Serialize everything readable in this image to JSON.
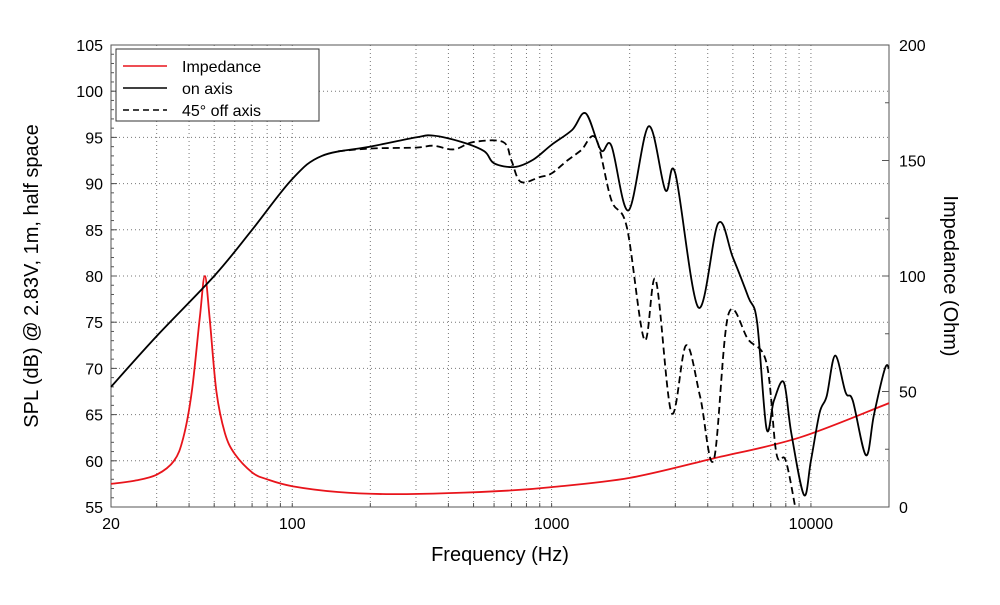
{
  "chart_data": {
    "type": "line",
    "title": "",
    "xlabel": "Frequency (Hz)",
    "ylabel": "SPL (dB) @ 2.83V, 1m, half space",
    "y2label": "Impedance (Ohm)",
    "xscale": "log",
    "xlim": [
      20,
      20000
    ],
    "ylim": [
      55,
      105
    ],
    "y2lim": [
      0,
      200
    ],
    "grid": true,
    "legend_position": "top-left",
    "x_tick_labels": [
      "20",
      "100",
      "1000",
      "10000"
    ],
    "x_ticks": [
      20,
      100,
      1000,
      10000
    ],
    "y_ticks": [
      55,
      60,
      65,
      70,
      75,
      80,
      85,
      90,
      95,
      100,
      105
    ],
    "y2_ticks": [
      0,
      50,
      100,
      150,
      200
    ],
    "series": [
      {
        "name": "Impedance",
        "axis": "right",
        "color": "#e8141b",
        "style": "solid",
        "points": [
          [
            20,
            10
          ],
          [
            25,
            11.5
          ],
          [
            30,
            14
          ],
          [
            35,
            20
          ],
          [
            38,
            30
          ],
          [
            41,
            50
          ],
          [
            44,
            82
          ],
          [
            46,
            100
          ],
          [
            48,
            82
          ],
          [
            51,
            50
          ],
          [
            55,
            32
          ],
          [
            60,
            23
          ],
          [
            70,
            15
          ],
          [
            80,
            12
          ],
          [
            100,
            9
          ],
          [
            150,
            6.5
          ],
          [
            230,
            5.6
          ],
          [
            400,
            6
          ],
          [
            700,
            7.2
          ],
          [
            1000,
            8.6
          ],
          [
            2000,
            12.6
          ],
          [
            4200,
            21
          ],
          [
            9000,
            30
          ],
          [
            20000,
            45
          ]
        ]
      },
      {
        "name": "on axis",
        "axis": "left",
        "color": "#000000",
        "style": "solid",
        "points": [
          [
            20,
            68
          ],
          [
            30,
            73.5
          ],
          [
            50,
            80
          ],
          [
            70,
            85
          ],
          [
            100,
            90.5
          ],
          [
            130,
            93
          ],
          [
            200,
            94
          ],
          [
            300,
            95
          ],
          [
            350,
            95.2
          ],
          [
            450,
            94.5
          ],
          [
            550,
            93.5
          ],
          [
            600,
            92.2
          ],
          [
            720,
            91.8
          ],
          [
            850,
            92.6
          ],
          [
            1000,
            94.2
          ],
          [
            1200,
            95.8
          ],
          [
            1355,
            97.6
          ],
          [
            1550,
            93.6
          ],
          [
            1700,
            94.1
          ],
          [
            1980,
            87.1
          ],
          [
            2366,
            96.2
          ],
          [
            2745,
            89.3
          ],
          [
            3000,
            91.1
          ],
          [
            3680,
            76.6
          ],
          [
            4390,
            85.7
          ],
          [
            5000,
            82
          ],
          [
            5740,
            77.7
          ],
          [
            6200,
            75
          ],
          [
            6740,
            63.5
          ],
          [
            7200,
            66.5
          ],
          [
            7860,
            68.5
          ],
          [
            8400,
            63
          ],
          [
            9400,
            56.3
          ],
          [
            10000,
            60
          ],
          [
            10800,
            65.2
          ],
          [
            11500,
            67
          ],
          [
            12400,
            71.4
          ],
          [
            13600,
            67.4
          ],
          [
            14500,
            66.5
          ],
          [
            16300,
            60.6
          ],
          [
            17500,
            65
          ],
          [
            19300,
            70
          ],
          [
            20000,
            70
          ]
        ]
      },
      {
        "name": "45° off axis",
        "axis": "left",
        "color": "#000000",
        "style": "dashed",
        "points": [
          [
            150,
            93.5
          ],
          [
            200,
            93.8
          ],
          [
            300,
            93.9
          ],
          [
            350,
            94.1
          ],
          [
            420,
            93.7
          ],
          [
            500,
            94.5
          ],
          [
            650,
            94.5
          ],
          [
            700,
            92.5
          ],
          [
            760,
            90.2
          ],
          [
            900,
            90.7
          ],
          [
            1000,
            91.1
          ],
          [
            1150,
            92.5
          ],
          [
            1300,
            93.6
          ],
          [
            1480,
            94.9
          ],
          [
            1700,
            88.2
          ],
          [
            1950,
            85.3
          ],
          [
            2280,
            73.1
          ],
          [
            2520,
            79.6
          ],
          [
            2900,
            65.2
          ],
          [
            3300,
            72.5
          ],
          [
            3740,
            66.9
          ],
          [
            4220,
            60.1
          ],
          [
            4800,
            75.8
          ],
          [
            5740,
            73.1
          ],
          [
            6740,
            70.6
          ],
          [
            7360,
            60.8
          ],
          [
            7980,
            60.1
          ],
          [
            8700,
            55
          ]
        ]
      }
    ]
  }
}
